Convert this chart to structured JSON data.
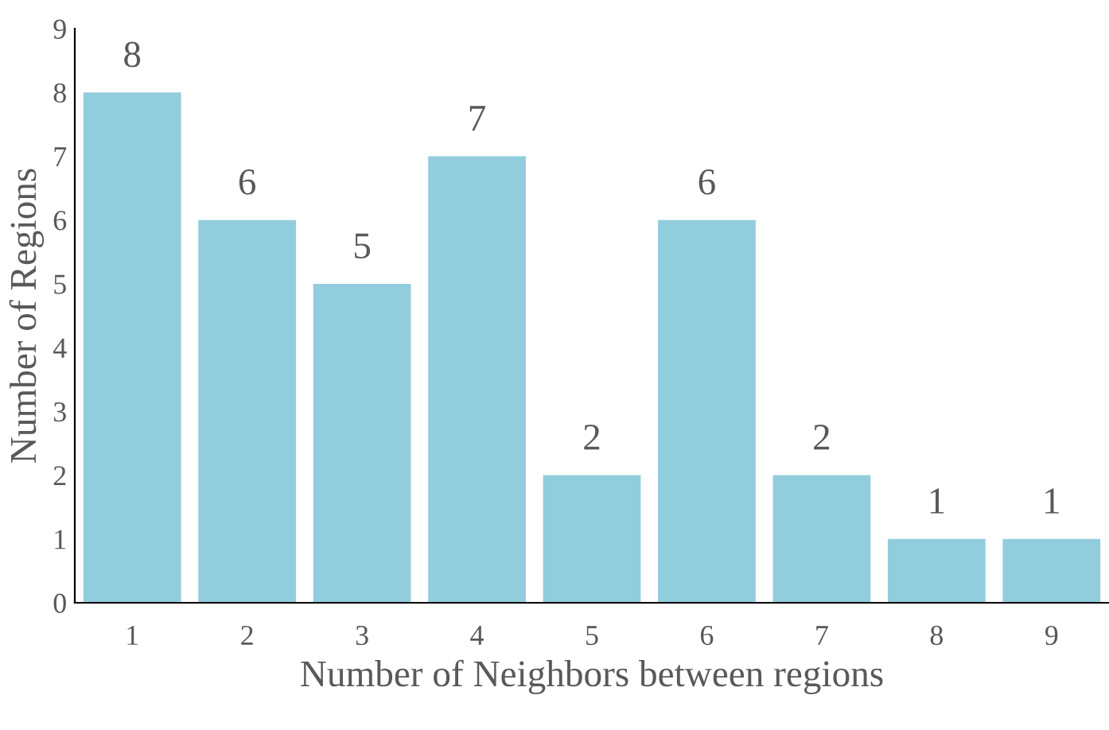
{
  "chart_data": {
    "type": "bar",
    "xlabel": "Number of Neighbors between regions",
    "ylabel": "Number of Regions",
    "categories": [
      "1",
      "2",
      "3",
      "4",
      "5",
      "6",
      "7",
      "8",
      "9"
    ],
    "values": [
      8,
      6,
      5,
      7,
      2,
      6,
      2,
      1,
      1
    ],
    "color": "#92cddd",
    "ylim": [
      0,
      9
    ],
    "yticks": [
      0,
      1,
      2,
      3,
      4,
      5,
      6,
      7,
      8,
      9
    ],
    "grid": false,
    "data_labels": true
  }
}
